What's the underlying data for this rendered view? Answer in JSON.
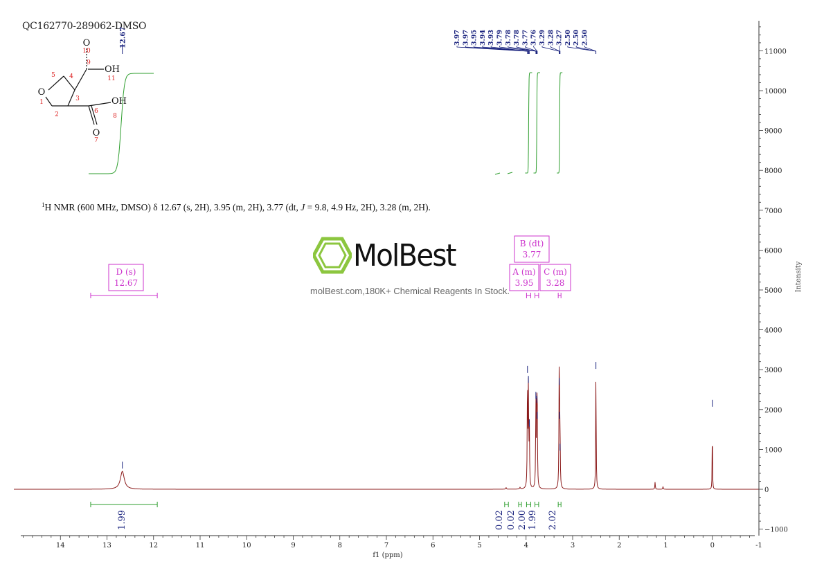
{
  "sample_id": "QC162770-289062-DMSO",
  "nmr_description": {
    "prefix_sup": "1",
    "text_main": "H NMR (600 MHz, DMSO) δ 12.67 (s, 2H), 3.95 (m, 2H), 3.77 (dt, ",
    "j_symbol": "J",
    "text_tail": " = 9.8, 4.9 Hz, 2H), 3.28 (m, 2H)."
  },
  "logo": {
    "wordmark": "MolBest",
    "tagline": "molBest.com,180K+ Chemical Reagents In Stock."
  },
  "colors": {
    "spectrum": "#8b1a1a",
    "integral_curve": "#2e9e2e",
    "peak_labels": "#1a237e",
    "multiplet_box": "#cc33cc",
    "axis": "#333333",
    "logo_green": "#8cc63f"
  },
  "structure": {
    "atom_labels": [
      "O",
      "O",
      "OH",
      "OH",
      "O"
    ],
    "atom_numbers": [
      "1",
      "2",
      "3",
      "4",
      "5",
      "6",
      "7",
      "8",
      "9",
      "10",
      "11"
    ]
  },
  "chart_data": {
    "type": "line",
    "xlabel": "f1 (ppm)",
    "ylabel": "Intensity",
    "xlim": [
      15,
      -1
    ],
    "x_reversed": true,
    "ylim": [
      -1200,
      11800
    ],
    "x_ticks": [
      "14",
      "13",
      "12",
      "11",
      "10",
      "9",
      "8",
      "7",
      "6",
      "5",
      "4",
      "3",
      "2",
      "1",
      "0",
      "-1"
    ],
    "y_ticks": [
      "11000",
      "10000",
      "9000",
      "8000",
      "7000",
      "6000",
      "5000",
      "4000",
      "3000",
      "2000",
      "1000",
      "0",
      "-1000"
    ],
    "peaks": [
      {
        "ppm": 12.67,
        "height": 450,
        "width": 0.05
      },
      {
        "ppm": 3.97,
        "height": 2850,
        "width": 0.006
      },
      {
        "ppm": 3.95,
        "height": 2600,
        "width": 0.006
      },
      {
        "ppm": 3.93,
        "height": 1500,
        "width": 0.006
      },
      {
        "ppm": 3.79,
        "height": 2200,
        "width": 0.006
      },
      {
        "ppm": 3.77,
        "height": 2100,
        "width": 0.006
      },
      {
        "ppm": 3.76,
        "height": 1700,
        "width": 0.006
      },
      {
        "ppm": 3.29,
        "height": 2550,
        "width": 0.006
      },
      {
        "ppm": 3.28,
        "height": 1700,
        "width": 0.006
      },
      {
        "ppm": 3.27,
        "height": 900,
        "width": 0.006
      },
      {
        "ppm": 2.5,
        "height": 2950,
        "width": 0.006
      },
      {
        "ppm": 4.43,
        "height": 40,
        "width": 0.01
      },
      {
        "ppm": 4.13,
        "height": 40,
        "width": 0.01
      },
      {
        "ppm": 1.23,
        "height": 180,
        "width": 0.006
      },
      {
        "ppm": 1.06,
        "height": 70,
        "width": 0.006
      },
      {
        "ppm": 0.0,
        "height": 2000,
        "width": 0.004
      }
    ],
    "peak_labels": [
      "12.67",
      "3.97",
      "3.97",
      "3.95",
      "3.94",
      "3.93",
      "3.79",
      "3.78",
      "3.78",
      "3.77",
      "3.76",
      "3.29",
      "3.28",
      "3.27",
      "2.50",
      "2.50",
      "2.50"
    ],
    "multiplets": [
      {
        "label": "D (s)",
        "value": "12.67",
        "range": [
          13.35,
          11.92
        ]
      },
      {
        "label": "A (m)",
        "value": "3.95",
        "range": [
          3.99,
          3.9
        ]
      },
      {
        "label": "B (dt)",
        "value": "3.77",
        "range": [
          3.81,
          3.73
        ]
      },
      {
        "label": "C (m)",
        "value": "3.28",
        "range": [
          3.31,
          3.25
        ]
      }
    ],
    "integrals": [
      {
        "value": "1.99",
        "ppm": 12.67,
        "range": [
          13.35,
          11.92
        ]
      },
      {
        "value": "0.02",
        "ppm": 4.42,
        "range": [
          4.46,
          4.38
        ]
      },
      {
        "value": "0.02",
        "ppm": 4.13,
        "range": [
          4.16,
          4.1
        ]
      },
      {
        "value": "2.00",
        "ppm": 3.95,
        "range": [
          3.99,
          3.9
        ]
      },
      {
        "value": "1.99",
        "ppm": 3.77,
        "range": [
          3.81,
          3.73
        ]
      },
      {
        "value": "2.02",
        "ppm": 3.28,
        "range": [
          3.31,
          3.25
        ]
      }
    ]
  }
}
